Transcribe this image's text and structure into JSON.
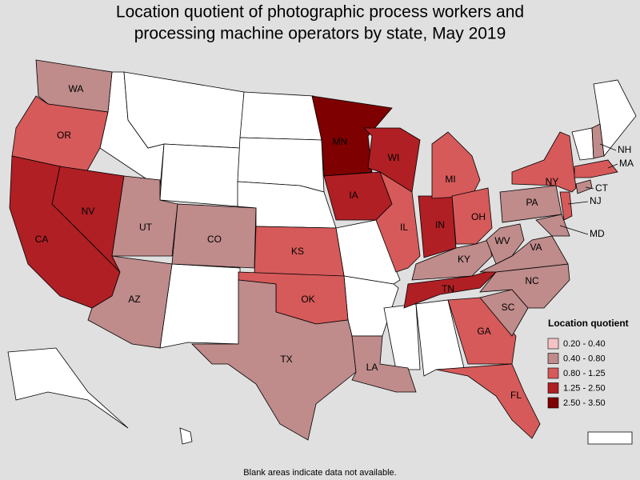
{
  "map": {
    "title": [
      "Location quotient of photographic process workers and",
      "processing machine operators by state, May 2019"
    ],
    "legend": {
      "title": "Location quotient",
      "items": [
        {
          "label": "0.20 - 0.40",
          "color": "#f5c3c6"
        },
        {
          "label": "0.40 - 0.80",
          "color": "#bf8b8b"
        },
        {
          "label": "0.80 - 1.25",
          "color": "#d65a5a"
        },
        {
          "label": "1.25 - 2.50",
          "color": "#b01f24"
        },
        {
          "label": "2.50 - 3.50",
          "color": "#7f0000"
        }
      ]
    },
    "states": [
      {
        "label": "WA",
        "color": "#bf8b8b"
      },
      {
        "label": "OR",
        "color": "#d65a5a"
      },
      {
        "label": "CA",
        "color": "#b01f24"
      },
      {
        "label": "NV",
        "color": "#b01f24"
      },
      {
        "label": "UT",
        "color": "#bf8b8b"
      },
      {
        "label": "CO",
        "color": "#bf8b8b"
      },
      {
        "label": "AZ",
        "color": "#bf8b8b"
      },
      {
        "label": "KS",
        "color": "#d65a5a"
      },
      {
        "label": "OK",
        "color": "#d65a5a"
      },
      {
        "label": "TX",
        "color": "#bf8b8b"
      },
      {
        "label": "MN",
        "color": "#7f0000"
      },
      {
        "label": "IA",
        "color": "#b01f24"
      },
      {
        "label": "LA",
        "color": "#bf8b8b"
      },
      {
        "label": "WI",
        "color": "#b01f24"
      },
      {
        "label": "IL",
        "color": "#d65a5a"
      },
      {
        "label": "IN",
        "color": "#b01f24"
      },
      {
        "label": "MI",
        "color": "#d65a5a"
      },
      {
        "label": "OH",
        "color": "#d65a5a"
      },
      {
        "label": "KY",
        "color": "#bf8b8b"
      },
      {
        "label": "TN",
        "color": "#b01f24"
      },
      {
        "label": "GA",
        "color": "#d65a5a"
      },
      {
        "label": "FL",
        "color": "#d65a5a"
      },
      {
        "label": "SC",
        "color": "#bf8b8b"
      },
      {
        "label": "NC",
        "color": "#bf8b8b"
      },
      {
        "label": "VA",
        "color": "#bf8b8b"
      },
      {
        "label": "WV",
        "color": "#bf8b8b"
      },
      {
        "label": "PA",
        "color": "#bf8b8b"
      },
      {
        "label": "NY",
        "color": "#d65a5a"
      },
      {
        "label": "NJ",
        "color": "#d65a5a"
      },
      {
        "label": "MD",
        "color": "#bf8b8b"
      },
      {
        "label": "CT",
        "color": "#bf8b8b"
      },
      {
        "label": "MA",
        "color": "#d65a5a"
      },
      {
        "label": "NH",
        "color": "#bf8b8b"
      }
    ],
    "footnote": "Blank areas indicate data not available."
  }
}
